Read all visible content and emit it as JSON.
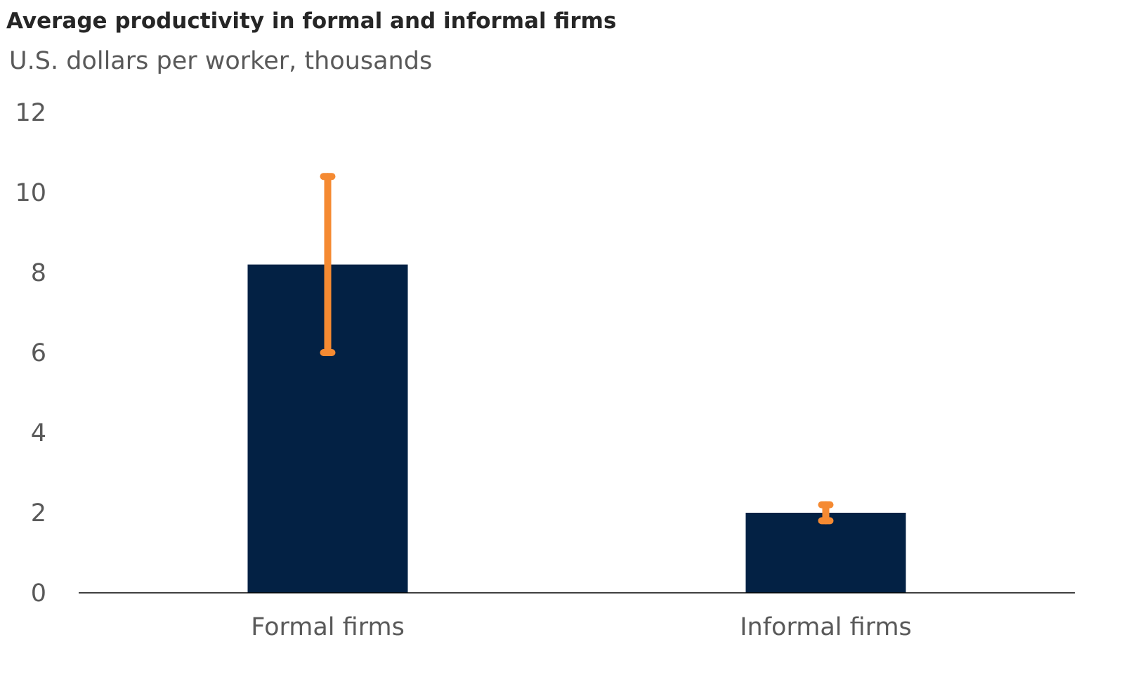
{
  "chart_data": {
    "type": "bar",
    "title": "Average productivity in formal and informal firms",
    "subtitle": "U.S. dollars per worker, thousands",
    "categories": [
      "Formal firms",
      "Informal firms"
    ],
    "values": [
      8.2,
      2.0
    ],
    "error_bars": [
      {
        "low": 6.0,
        "high": 10.4
      },
      {
        "low": 1.8,
        "high": 2.2
      }
    ],
    "ylim": [
      0,
      12
    ],
    "yticks": [
      0,
      2,
      4,
      6,
      8,
      10,
      12
    ],
    "grid": false,
    "colors": {
      "bar": "#032144",
      "error_bar": "#f58a32",
      "axis": "#000000"
    }
  }
}
